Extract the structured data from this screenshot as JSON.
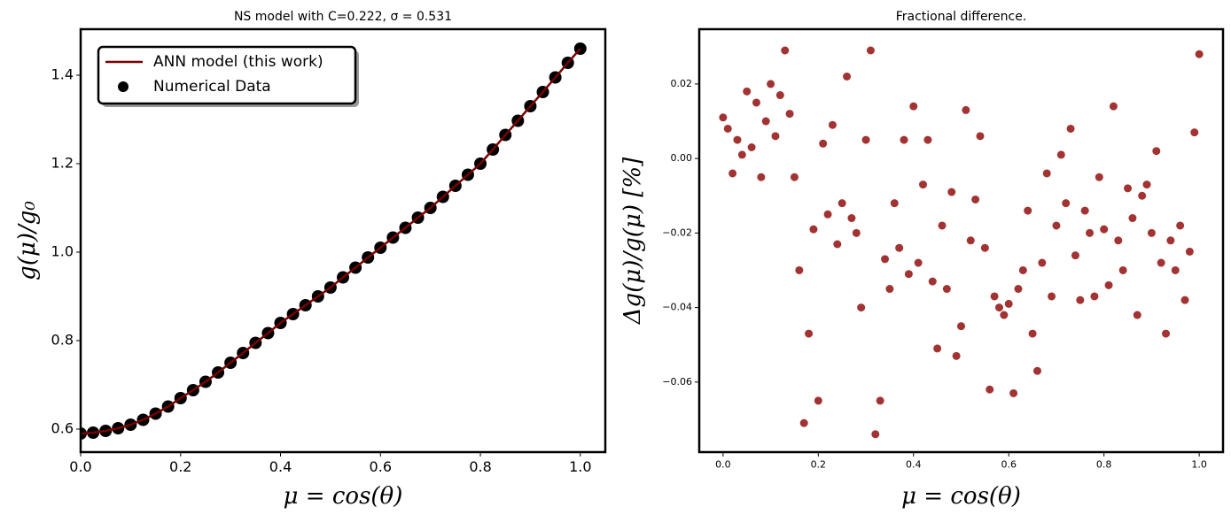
{
  "chart_data": [
    {
      "type": "line",
      "title": "NS model with C=0.222, σ = 0.531",
      "xlabel": "μ = cos(θ)",
      "ylabel": "g(μ)/g₀",
      "x": [
        0,
        0.025,
        0.05,
        0.075,
        0.1,
        0.125,
        0.15,
        0.175,
        0.2,
        0.225,
        0.25,
        0.275,
        0.3,
        0.325,
        0.35,
        0.375,
        0.4,
        0.425,
        0.45,
        0.475,
        0.5,
        0.525,
        0.55,
        0.575,
        0.6,
        0.625,
        0.65,
        0.675,
        0.7,
        0.725,
        0.75,
        0.775,
        0.8,
        0.825,
        0.85,
        0.875,
        0.9,
        0.925,
        0.95,
        0.975,
        1.0
      ],
      "series": [
        {
          "name": "ANN model (this work)",
          "type": "line",
          "color": "#7a0000",
          "values": [
            0.59,
            0.592,
            0.596,
            0.602,
            0.61,
            0.621,
            0.635,
            0.651,
            0.67,
            0.688,
            0.707,
            0.728,
            0.75,
            0.772,
            0.795,
            0.817,
            0.84,
            0.86,
            0.88,
            0.9,
            0.92,
            0.943,
            0.965,
            0.988,
            1.01,
            1.033,
            1.055,
            1.078,
            1.1,
            1.125,
            1.15,
            1.175,
            1.2,
            1.232,
            1.265,
            1.297,
            1.33,
            1.362,
            1.395,
            1.428,
            1.46
          ]
        },
        {
          "name": "Numerical Data",
          "type": "scatter",
          "color": "#000000",
          "values": [
            0.59,
            0.592,
            0.596,
            0.602,
            0.61,
            0.621,
            0.635,
            0.651,
            0.67,
            0.688,
            0.707,
            0.728,
            0.75,
            0.772,
            0.795,
            0.817,
            0.84,
            0.86,
            0.88,
            0.9,
            0.92,
            0.943,
            0.965,
            0.988,
            1.01,
            1.033,
            1.055,
            1.078,
            1.1,
            1.125,
            1.15,
            1.175,
            1.2,
            1.232,
            1.265,
            1.297,
            1.33,
            1.362,
            1.395,
            1.428,
            1.46
          ]
        }
      ],
      "xlim": [
        0,
        1.05
      ],
      "xticks": [
        {
          "value": 0,
          "label": "0.0"
        },
        0.2,
        0.4,
        0.6,
        0.8,
        {
          "value": 1,
          "label": "1.0"
        }
      ],
      "ylim": [
        0.548,
        1.504
      ],
      "yticks": [
        0.6,
        0.8,
        {
          "value": 1,
          "label": "1.0"
        },
        1.2,
        1.4
      ],
      "legend": "upper left"
    },
    {
      "type": "scatter",
      "title": "Fractional difference.",
      "xlabel": "μ = cos(θ)",
      "ylabel": "Δg(μ)/g(μ)  [%]",
      "color": "#8b0000",
      "x": [
        0,
        0.01,
        0.02,
        0.03,
        0.04,
        0.05,
        0.06,
        0.07,
        0.08,
        0.09,
        0.1,
        0.11,
        0.12,
        0.13,
        0.14,
        0.15,
        0.16,
        0.17,
        0.18,
        0.19,
        0.2,
        0.21,
        0.22,
        0.23,
        0.24,
        0.25,
        0.26,
        0.27,
        0.28,
        0.29,
        0.3,
        0.31,
        0.32,
        0.33,
        0.34,
        0.35,
        0.36,
        0.37,
        0.38,
        0.39,
        0.4,
        0.41,
        0.42,
        0.43,
        0.44,
        0.45,
        0.46,
        0.47,
        0.48,
        0.49,
        0.5,
        0.51,
        0.52,
        0.53,
        0.54,
        0.55,
        0.56,
        0.57,
        0.58,
        0.59,
        0.6,
        0.61,
        0.62,
        0.63,
        0.64,
        0.65,
        0.66,
        0.67,
        0.68,
        0.69,
        0.7,
        0.71,
        0.72,
        0.73,
        0.74,
        0.75,
        0.76,
        0.77,
        0.78,
        0.79,
        0.8,
        0.81,
        0.82,
        0.83,
        0.84,
        0.85,
        0.86,
        0.87,
        0.88,
        0.89,
        0.9,
        0.91,
        0.92,
        0.93,
        0.94,
        0.95,
        0.96,
        0.97,
        0.98,
        0.99,
        1.0
      ],
      "values": [
        0.011,
        0.008,
        -0.004,
        0.005,
        0.001,
        0.018,
        0.003,
        0.015,
        -0.005,
        0.01,
        0.02,
        0.006,
        0.017,
        0.029,
        0.012,
        -0.005,
        -0.03,
        -0.071,
        -0.047,
        -0.019,
        -0.065,
        0.004,
        -0.015,
        0.009,
        -0.023,
        -0.012,
        0.022,
        -0.016,
        -0.02,
        -0.04,
        0.005,
        0.029,
        -0.074,
        -0.065,
        -0.027,
        -0.035,
        -0.012,
        -0.024,
        0.005,
        -0.031,
        0.014,
        -0.028,
        -0.007,
        0.005,
        -0.033,
        -0.051,
        -0.018,
        -0.035,
        -0.009,
        -0.053,
        -0.045,
        0.013,
        -0.022,
        -0.011,
        0.006,
        -0.024,
        -0.062,
        -0.037,
        -0.04,
        -0.042,
        -0.039,
        -0.063,
        -0.035,
        -0.03,
        -0.014,
        -0.047,
        -0.057,
        -0.028,
        -0.004,
        -0.037,
        -0.018,
        0.001,
        -0.012,
        0.008,
        -0.026,
        -0.038,
        -0.014,
        -0.02,
        -0.037,
        -0.005,
        -0.019,
        -0.034,
        0.014,
        -0.022,
        -0.03,
        -0.008,
        -0.016,
        -0.042,
        -0.01,
        -0.007,
        -0.02,
        0.002,
        -0.028,
        -0.047,
        -0.022,
        -0.03,
        -0.018,
        -0.038,
        -0.025,
        0.007,
        0.028
      ],
      "xlim": [
        -0.05,
        1.05
      ],
      "xticks": [
        {
          "value": 0,
          "label": "0.0"
        },
        0.2,
        0.4,
        0.6,
        0.8,
        {
          "value": 1,
          "label": "1.0"
        }
      ],
      "ylim": [
        -0.0788,
        0.0347
      ],
      "yticks": [
        {
          "value": -0.06,
          "label": "−0.06"
        },
        {
          "value": -0.04,
          "label": "−0.04"
        },
        {
          "value": -0.02,
          "label": "−0.02"
        },
        {
          "value": 0,
          "label": "0.00"
        },
        0.02
      ]
    }
  ]
}
